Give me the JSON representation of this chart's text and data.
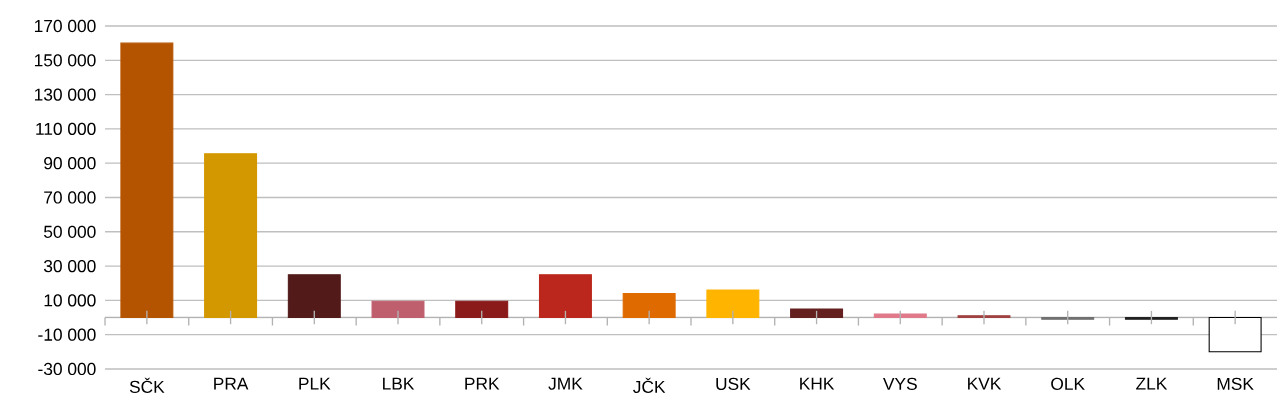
{
  "chart_data": {
    "type": "bar",
    "categories": [
      "SČK",
      "PRA",
      "PLK",
      "LBK",
      "PRK",
      "JMK",
      "JČK",
      "USK",
      "KHK",
      "VYS",
      "KVK",
      "OLK",
      "ZLK",
      "MSK"
    ],
    "values": [
      160000,
      95500,
      25000,
      9500,
      9500,
      25000,
      14000,
      16000,
      5000,
      2000,
      1000,
      -1000,
      -1000,
      -20000
    ],
    "colors": [
      "#b55400",
      "#d39700",
      "#521b1a",
      "#bf5f6e",
      "#8b1a1a",
      "#bb271c",
      "#de6a00",
      "#ffb400",
      "#64201f",
      "#e07a8a",
      "#a04040",
      "#707070",
      "#222222",
      "#ffffff"
    ],
    "ylim": [
      -30000,
      170000
    ],
    "yticks": [
      {
        "value": -30000,
        "label": "-30 000"
      },
      {
        "value": -10000,
        "label": "-10 000"
      },
      {
        "value": 10000,
        "label": "10 000"
      },
      {
        "value": 30000,
        "label": "30 000"
      },
      {
        "value": 50000,
        "label": "50 000"
      },
      {
        "value": 70000,
        "label": "70 000"
      },
      {
        "value": 90000,
        "label": "90 000"
      },
      {
        "value": 110000,
        "label": "110 000"
      },
      {
        "value": 130000,
        "label": "130 000"
      },
      {
        "value": 150000,
        "label": "150 000"
      },
      {
        "value": 170000,
        "label": "170 000"
      }
    ],
    "grid": "y"
  }
}
